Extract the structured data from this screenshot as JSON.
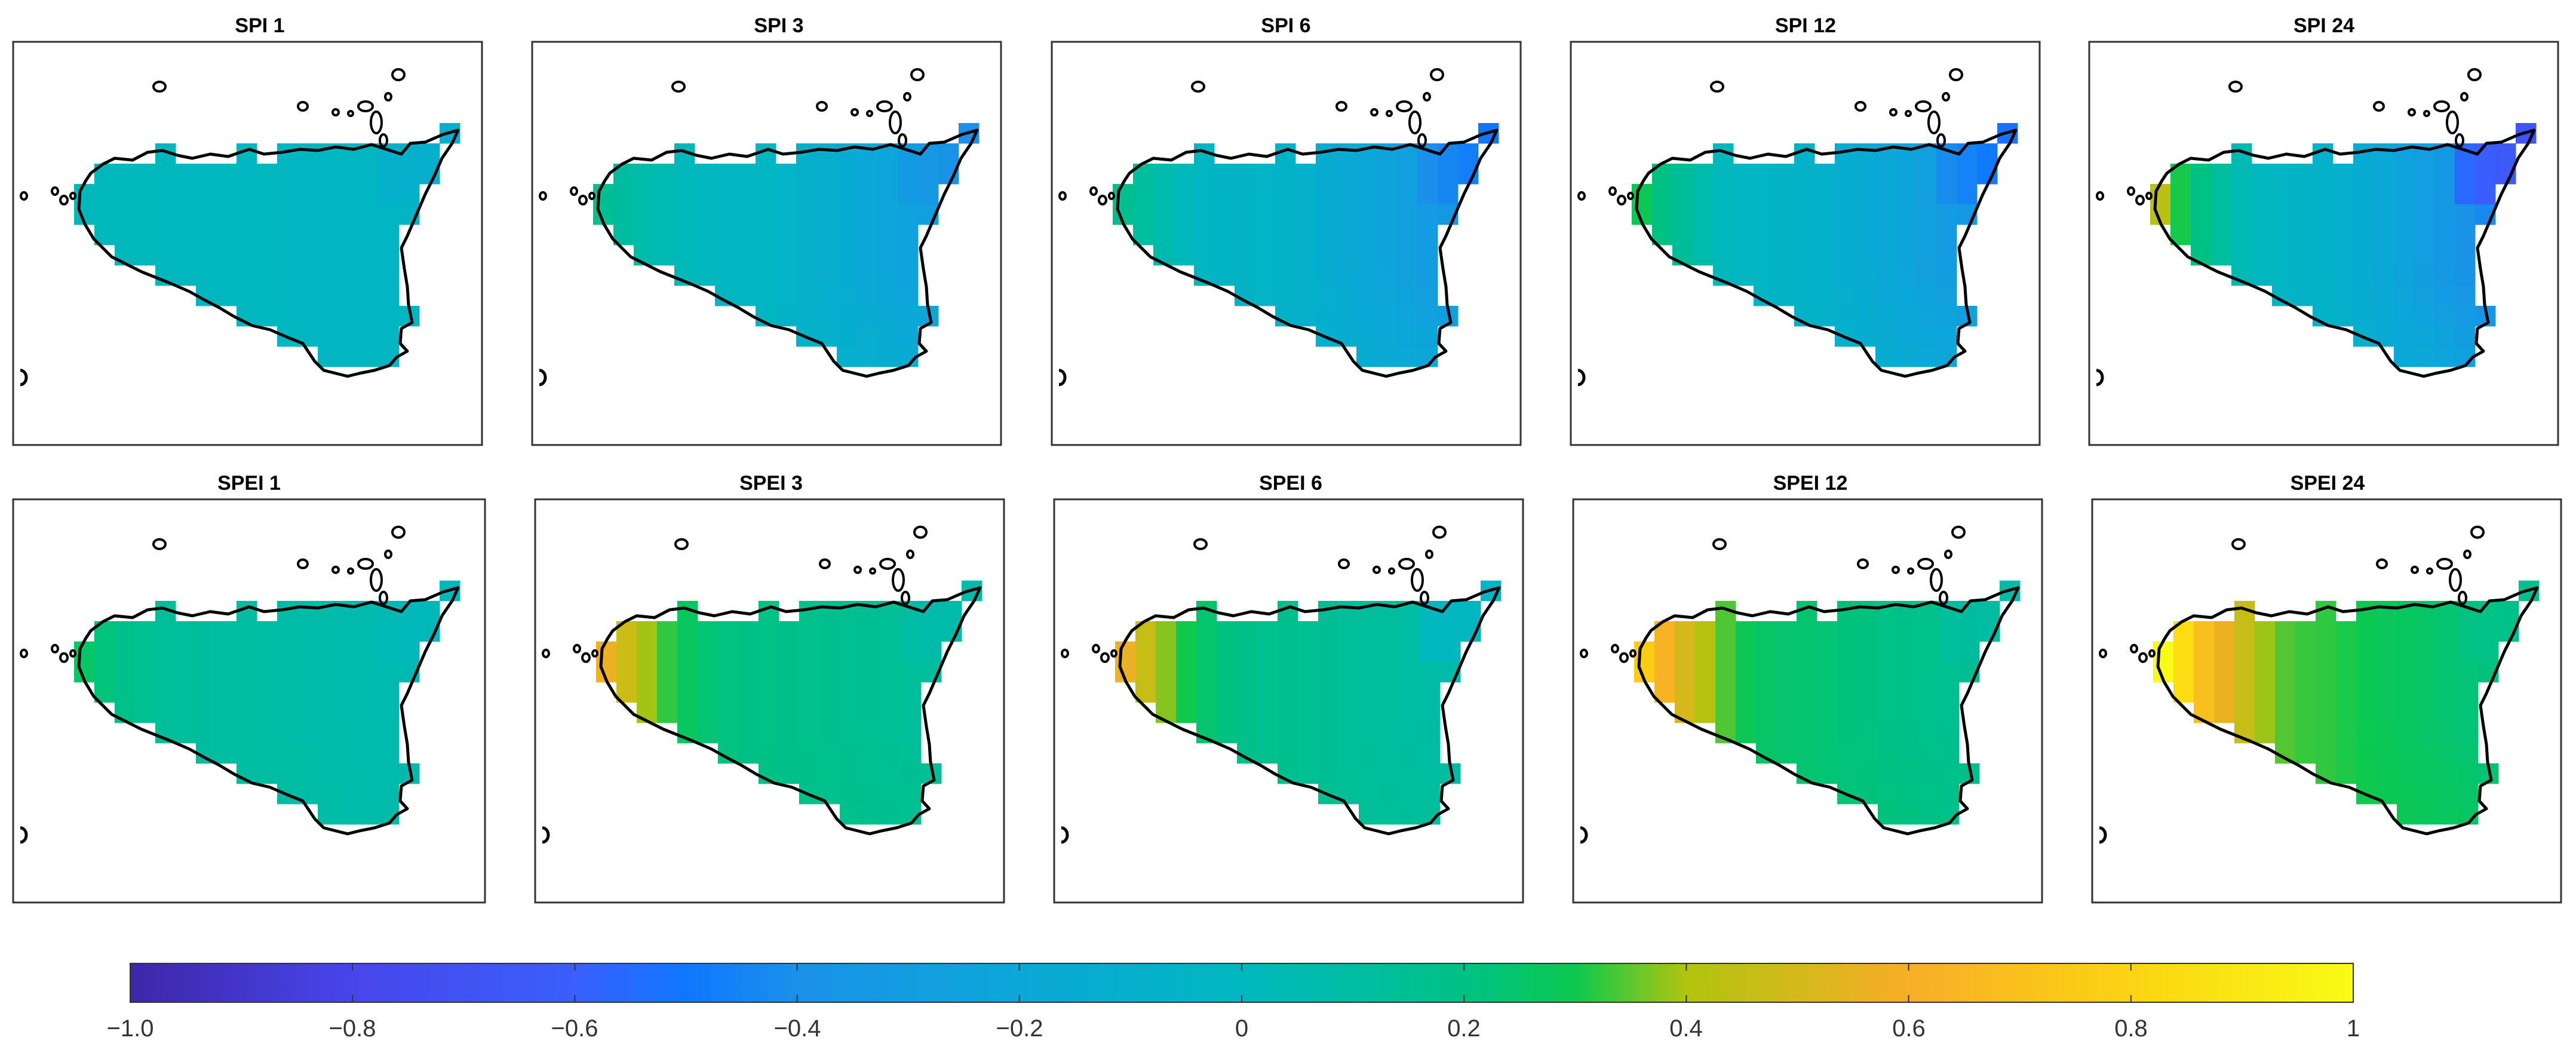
{
  "panels": [
    {
      "title": "SPI 1",
      "index": "SPI",
      "timescale": 1
    },
    {
      "title": "SPI 3",
      "index": "SPI",
      "timescale": 3
    },
    {
      "title": "SPI 6",
      "index": "SPI",
      "timescale": 6
    },
    {
      "title": "SPI 12",
      "index": "SPI",
      "timescale": 12
    },
    {
      "title": "SPI 24",
      "index": "SPI",
      "timescale": 24
    },
    {
      "title": "SPEI 1",
      "index": "SPEI",
      "timescale": 1
    },
    {
      "title": "SPEI 3",
      "index": "SPEI",
      "timescale": 3
    },
    {
      "title": "SPEI 6",
      "index": "SPEI",
      "timescale": 6
    },
    {
      "title": "SPEI 12",
      "index": "SPEI",
      "timescale": 12
    },
    {
      "title": "SPEI 24",
      "index": "SPEI",
      "timescale": 24
    }
  ],
  "colorbar": {
    "min": -1.0,
    "max": 1,
    "ticks": [
      {
        "value": -1.0,
        "label": "−1.0"
      },
      {
        "value": -0.8,
        "label": "−0.8"
      },
      {
        "value": -0.6,
        "label": "−0.6"
      },
      {
        "value": -0.4,
        "label": "−0.4"
      },
      {
        "value": -0.2,
        "label": "−0.2"
      },
      {
        "value": 0,
        "label": "0"
      },
      {
        "value": 0.2,
        "label": "0.2"
      },
      {
        "value": 0.4,
        "label": "0.4"
      },
      {
        "value": 0.6,
        "label": "0.6"
      },
      {
        "value": 0.8,
        "label": "0.8"
      },
      {
        "value": 1,
        "label": "1"
      }
    ],
    "stops": [
      {
        "value": -1.0,
        "color": "#3e26a8"
      },
      {
        "value": -0.8,
        "color": "#4746eb"
      },
      {
        "value": -0.6,
        "color": "#3a5ffc"
      },
      {
        "value": -0.5,
        "color": "#0f77ff"
      },
      {
        "value": -0.4,
        "color": "#1a91e9"
      },
      {
        "value": -0.2,
        "color": "#0ba8d8"
      },
      {
        "value": 0,
        "color": "#00b7bf"
      },
      {
        "value": 0.2,
        "color": "#00c184"
      },
      {
        "value": 0.3,
        "color": "#0bc94f"
      },
      {
        "value": 0.4,
        "color": "#b0c40e"
      },
      {
        "value": 0.6,
        "color": "#f8ae27"
      },
      {
        "value": 0.8,
        "color": "#fbd412"
      },
      {
        "value": 1,
        "color": "#f9fb15"
      }
    ]
  }
}
